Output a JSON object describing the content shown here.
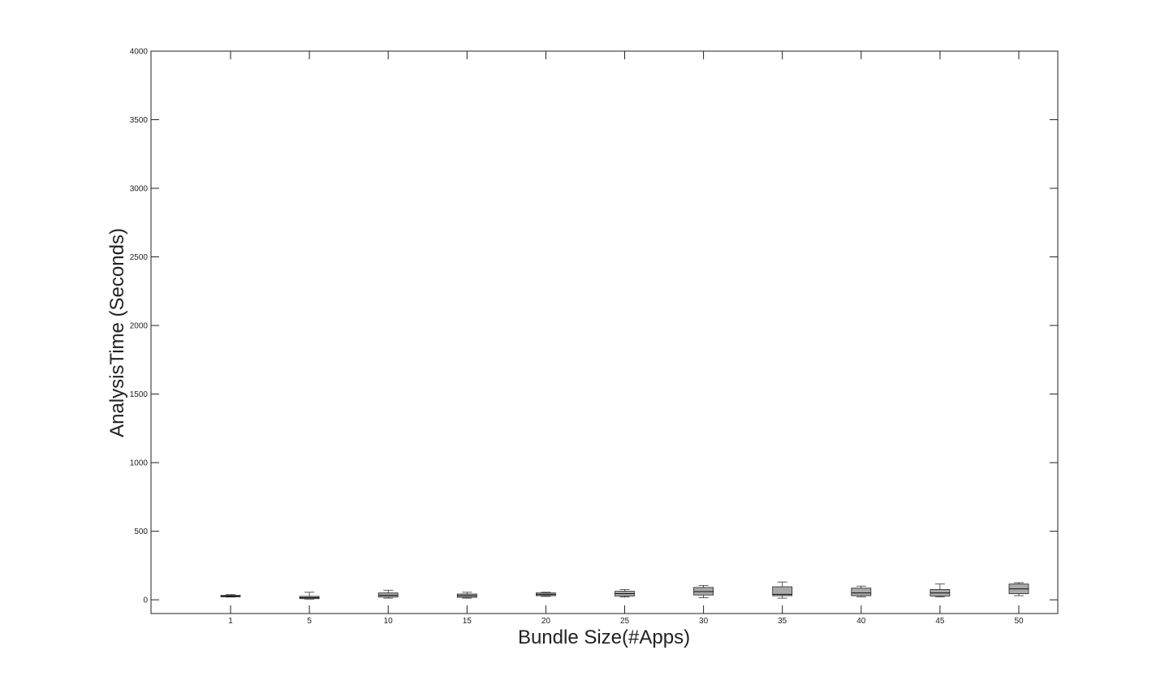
{
  "chart_data": {
    "type": "box",
    "xlabel": "Bundle Size(#Apps)",
    "ylabel": "AnalysisTime (Seconds)",
    "categories": [
      "1",
      "5",
      "10",
      "15",
      "20",
      "25",
      "30",
      "35",
      "40",
      "45",
      "50"
    ],
    "ylim": [
      -100,
      4000
    ],
    "yticks": [
      0,
      500,
      1000,
      1500,
      2000,
      2500,
      3000,
      3500,
      4000
    ],
    "grid": false,
    "box_color": "#a9a9a9",
    "boxes": [
      {
        "category": "1",
        "whisker_low": 20,
        "q1": 22,
        "median": 27,
        "q3": 32,
        "whisker_high": 38
      },
      {
        "category": "5",
        "whisker_low": 5,
        "q1": 8,
        "median": 15,
        "q3": 25,
        "whisker_high": 55
      },
      {
        "category": "10",
        "whisker_low": 12,
        "q1": 20,
        "median": 33,
        "q3": 50,
        "whisker_high": 70
      },
      {
        "category": "15",
        "whisker_low": 12,
        "q1": 18,
        "median": 30,
        "q3": 42,
        "whisker_high": 55
      },
      {
        "category": "20",
        "whisker_low": 25,
        "q1": 30,
        "median": 40,
        "q3": 50,
        "whisker_high": 55
      },
      {
        "category": "25",
        "whisker_low": 20,
        "q1": 28,
        "median": 45,
        "q3": 62,
        "whisker_high": 75
      },
      {
        "category": "30",
        "whisker_low": 15,
        "q1": 35,
        "median": 60,
        "q3": 90,
        "whisker_high": 105
      },
      {
        "category": "35",
        "whisker_low": 12,
        "q1": 30,
        "median": 40,
        "q3": 95,
        "whisker_high": 130
      },
      {
        "category": "40",
        "whisker_low": 22,
        "q1": 30,
        "median": 50,
        "q3": 85,
        "whisker_high": 100
      },
      {
        "category": "45",
        "whisker_low": 22,
        "q1": 28,
        "median": 50,
        "q3": 75,
        "whisker_high": 115
      },
      {
        "category": "50",
        "whisker_low": 30,
        "q1": 45,
        "median": 80,
        "q3": 115,
        "whisker_high": 125
      }
    ]
  }
}
